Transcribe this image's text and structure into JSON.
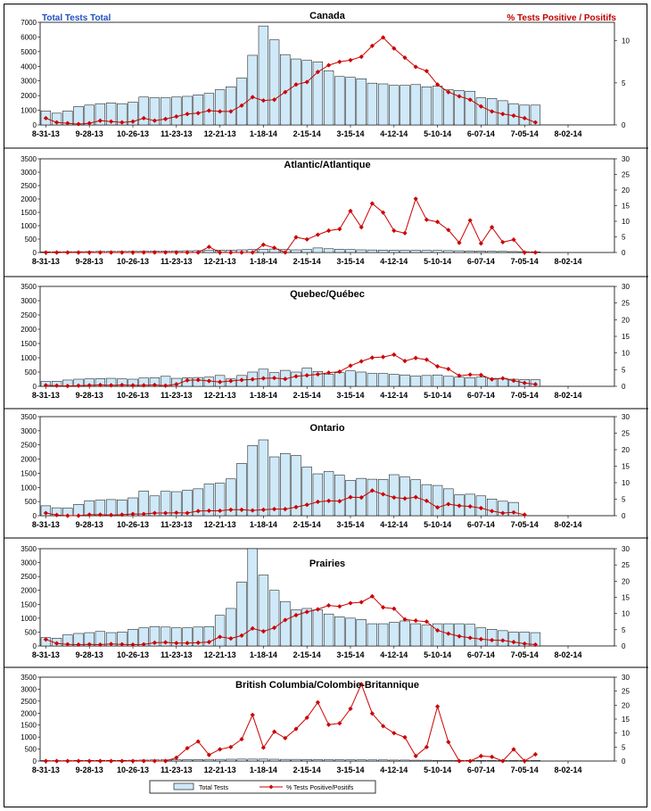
{
  "header": {
    "left_label": "Total Tests Total",
    "right_label": "% Tests Positive / Positifs",
    "left_color": "#1f4fbf",
    "right_color": "#c00000"
  },
  "colors": {
    "bar_fill": "#cfe9f8",
    "bar_stroke": "#000000",
    "line": "#cc0000"
  },
  "legend": {
    "bars": "Total Tests",
    "line": "% Tests Positive/Positifs"
  },
  "chart_data": [
    {
      "type": "bar",
      "title": "Canada",
      "x_tick_labels": [
        "8-31-13",
        "9-28-13",
        "10-26-13",
        "11-23-13",
        "12-21-13",
        "1-18-14",
        "2-15-14",
        "3-15-14",
        "4-12-14",
        "5-10-14",
        "6-07-14",
        "7-05-14",
        "8-02-14"
      ],
      "y_ticks": [
        0,
        1000,
        2000,
        3000,
        4000,
        5000,
        6000,
        7000
      ],
      "y2_ticks": [
        0,
        5,
        10
      ],
      "ylim": [
        0,
        7000
      ],
      "y2lim": [
        0,
        12.2
      ],
      "series": [
        {
          "name": "Total Tests",
          "values": [
            950,
            800,
            950,
            1250,
            1350,
            1450,
            1500,
            1450,
            1550,
            1900,
            1850,
            1850,
            1900,
            1950,
            2050,
            2150,
            2400,
            2600,
            3200,
            4750,
            6750,
            5800,
            4800,
            4500,
            4400,
            4300,
            3700,
            3300,
            3250,
            3150,
            2850,
            2800,
            2700,
            2700,
            2750,
            2600,
            2650,
            2400,
            2350,
            2300,
            1850,
            1800,
            1650,
            1450,
            1350,
            1350,
            0,
            0,
            0,
            0,
            0,
            0,
            0
          ]
        },
        {
          "name": "% Tests Positive / Positifs",
          "values": [
            0.8,
            0.3,
            0.2,
            0.1,
            0.2,
            0.5,
            0.4,
            0.3,
            0.4,
            0.8,
            0.5,
            0.7,
            1.0,
            1.3,
            1.4,
            1.7,
            1.6,
            1.6,
            2.3,
            3.3,
            2.9,
            3.0,
            3.9,
            4.8,
            5.1,
            6.3,
            7.1,
            7.5,
            7.7,
            8.1,
            9.4,
            10.4,
            9.1,
            8.0,
            6.9,
            6.4,
            4.8,
            3.9,
            3.4,
            3.0,
            2.2,
            1.6,
            1.3,
            1.1,
            0.8,
            0.3,
            null,
            null,
            null,
            null,
            null,
            null,
            null
          ]
        }
      ]
    },
    {
      "type": "bar",
      "title": "Atlantic/Atlantique",
      "x_tick_labels": [
        "8-31-13",
        "9-28-13",
        "10-26-13",
        "11-23-13",
        "12-21-13",
        "1-18-14",
        "2-15-14",
        "3-15-14",
        "4-12-14",
        "5-10-14",
        "6-07-14",
        "7-05-14",
        "8-02-14"
      ],
      "y_ticks": [
        0,
        500,
        1000,
        1500,
        2000,
        2500,
        3000,
        3500
      ],
      "y2_ticks": [
        0,
        5,
        10,
        15,
        20,
        25,
        30
      ],
      "ylim": [
        0,
        3500
      ],
      "y2lim": [
        0,
        30
      ],
      "series": [
        {
          "name": "Total Tests",
          "values": [
            25,
            25,
            30,
            30,
            35,
            40,
            40,
            40,
            45,
            50,
            55,
            55,
            60,
            65,
            70,
            80,
            90,
            90,
            100,
            110,
            120,
            130,
            110,
            100,
            110,
            170,
            140,
            120,
            110,
            100,
            95,
            90,
            85,
            80,
            80,
            75,
            75,
            70,
            65,
            60,
            55,
            45,
            40,
            35,
            30,
            25,
            0,
            0,
            0,
            0,
            0,
            0,
            0
          ]
        },
        {
          "name": "% Tests Positive / Positifs",
          "values": [
            0,
            0,
            0,
            0,
            0,
            0,
            0,
            0,
            0,
            0,
            0,
            0,
            0,
            0,
            0,
            1.8,
            0,
            0,
            0,
            0,
            2.5,
            1.5,
            0,
            4.9,
            4.2,
            5.7,
            7.0,
            7.5,
            13.3,
            8.1,
            15.7,
            12.8,
            7.0,
            6.2,
            17.2,
            10.5,
            9.8,
            7.2,
            3.1,
            10.3,
            2.9,
            8.1,
            3.3,
            4.1,
            0,
            0,
            null,
            null,
            null,
            null,
            null,
            null,
            null
          ]
        }
      ]
    },
    {
      "type": "bar",
      "title": "Quebec/Québec",
      "x_tick_labels": [
        "8-31-13",
        "9-28-13",
        "10-26-13",
        "11-23-13",
        "12-21-13",
        "1-18-14",
        "2-15-14",
        "3-15-14",
        "4-12-14",
        "5-10-14",
        "6-07-14",
        "7-05-14",
        "8-02-14"
      ],
      "y_ticks": [
        0,
        500,
        1000,
        1500,
        2000,
        2500,
        3000,
        3500
      ],
      "y2_ticks": [
        0,
        5,
        10,
        15,
        20,
        25,
        30
      ],
      "ylim": [
        0,
        3500
      ],
      "y2lim": [
        0,
        30
      ],
      "series": [
        {
          "name": "Total Tests",
          "values": [
            170,
            180,
            220,
            250,
            260,
            270,
            280,
            260,
            250,
            290,
            300,
            350,
            280,
            300,
            310,
            320,
            380,
            260,
            380,
            500,
            600,
            480,
            560,
            500,
            640,
            520,
            430,
            480,
            540,
            500,
            450,
            450,
            420,
            400,
            360,
            380,
            400,
            350,
            320,
            300,
            320,
            280,
            280,
            250,
            240,
            230,
            0,
            0,
            0,
            0,
            0,
            0,
            0
          ]
        },
        {
          "name": "% Tests Positive / Positifs",
          "values": [
            0.3,
            0.2,
            0.1,
            0.2,
            0.3,
            0.4,
            0.3,
            0.4,
            0.3,
            0.3,
            0.4,
            0.2,
            0.6,
            1.8,
            1.9,
            1.6,
            1.3,
            1.6,
            1.9,
            2.1,
            2.4,
            2.5,
            2.2,
            3.0,
            3.3,
            3.6,
            4.1,
            4.4,
            6.2,
            7.5,
            8.6,
            8.8,
            9.5,
            7.6,
            8.5,
            8.0,
            6.0,
            5.2,
            3.2,
            3.5,
            3.4,
            2.1,
            2.4,
            1.7,
            1.0,
            0.6,
            null,
            null,
            null,
            null,
            null,
            null,
            null
          ]
        }
      ]
    },
    {
      "type": "bar",
      "title": "Ontario",
      "x_tick_labels": [
        "8-31-13",
        "9-28-13",
        "10-26-13",
        "11-23-13",
        "12-21-13",
        "1-18-14",
        "2-15-14",
        "3-15-14",
        "4-12-14",
        "5-10-14",
        "6-07-14",
        "7-05-14",
        "8-02-14"
      ],
      "y_ticks": [
        0,
        500,
        1000,
        1500,
        2000,
        2500,
        3000,
        3500
      ],
      "y2_ticks": [
        0,
        5,
        10,
        15,
        20,
        25,
        30
      ],
      "ylim": [
        0,
        3500
      ],
      "y2lim": [
        0,
        30
      ],
      "series": [
        {
          "name": "Total Tests",
          "values": [
            350,
            280,
            270,
            400,
            530,
            550,
            570,
            560,
            630,
            870,
            700,
            860,
            850,
            900,
            950,
            1120,
            1150,
            1300,
            1850,
            2480,
            2680,
            2080,
            2200,
            2130,
            1720,
            1480,
            1560,
            1440,
            1250,
            1320,
            1290,
            1280,
            1450,
            1370,
            1270,
            1100,
            1070,
            950,
            740,
            760,
            700,
            590,
            510,
            470,
            0,
            0,
            0,
            0,
            0,
            0,
            0,
            0,
            0
          ]
        },
        {
          "name": "% Tests Positive / Positifs",
          "values": [
            0.8,
            0.2,
            0,
            0,
            0.3,
            0.3,
            0.2,
            0.3,
            0.5,
            0.5,
            0.8,
            0.8,
            0.9,
            0.8,
            1.4,
            1.5,
            1.5,
            1.8,
            1.8,
            1.6,
            1.8,
            2.0,
            2.0,
            2.6,
            3.3,
            4.2,
            4.5,
            4.4,
            5.6,
            5.5,
            7.6,
            6.5,
            5.5,
            5.2,
            5.6,
            4.5,
            2.5,
            3.5,
            3.0,
            2.8,
            2.3,
            1.4,
            0.8,
            1.0,
            0.3,
            null,
            null,
            null,
            null,
            null,
            null,
            null,
            null
          ]
        }
      ]
    },
    {
      "type": "bar",
      "title": "Prairies",
      "x_tick_labels": [
        "8-31-13",
        "9-28-13",
        "10-26-13",
        "11-23-13",
        "12-21-13",
        "1-18-14",
        "2-15-14",
        "3-15-14",
        "4-12-14",
        "5-10-14",
        "6-07-14",
        "7-05-14",
        "8-02-14"
      ],
      "y_ticks": [
        0,
        500,
        1000,
        1500,
        2000,
        2500,
        3000,
        3500
      ],
      "y2_ticks": [
        0,
        5,
        10,
        15,
        20,
        25,
        30
      ],
      "ylim": [
        0,
        3500
      ],
      "y2lim": [
        0,
        30
      ],
      "series": [
        {
          "name": "Total Tests",
          "values": [
            300,
            280,
            400,
            450,
            480,
            520,
            480,
            500,
            600,
            650,
            700,
            680,
            650,
            650,
            680,
            700,
            1100,
            1350,
            2300,
            3500,
            2550,
            2000,
            1600,
            1300,
            1350,
            1300,
            1150,
            1050,
            1000,
            950,
            800,
            800,
            850,
            900,
            800,
            750,
            800,
            800,
            800,
            780,
            650,
            600,
            550,
            500,
            500,
            480,
            0,
            0,
            0,
            0,
            0,
            0,
            0
          ]
        },
        {
          "name": "% Tests Positive / Positifs",
          "values": [
            2.0,
            0.8,
            0.5,
            0.4,
            0.5,
            0.4,
            0.6,
            0.5,
            0.4,
            0.5,
            1.0,
            1.1,
            0.9,
            0.9,
            1.0,
            1.2,
            2.8,
            2.3,
            3.2,
            5.4,
            4.5,
            5.6,
            8.0,
            9.5,
            10.5,
            11.3,
            12.5,
            12.2,
            13.2,
            13.5,
            15.3,
            11.9,
            11.5,
            8.2,
            7.8,
            7.5,
            4.8,
            3.8,
            3.0,
            2.5,
            2.1,
            1.8,
            1.7,
            1.2,
            0.7,
            0.4,
            null,
            null,
            null,
            null,
            null,
            null,
            null
          ]
        }
      ]
    },
    {
      "type": "bar",
      "title": "British Columbia/Colombie-Britannique",
      "x_tick_labels": [
        "8-31-13",
        "9-28-13",
        "10-26-13",
        "11-23-13",
        "12-21-13",
        "1-18-14",
        "2-15-14",
        "3-15-14",
        "4-12-14",
        "5-10-14",
        "6-07-14",
        "7-05-14",
        "8-02-14"
      ],
      "y_ticks": [
        0,
        500,
        1000,
        1500,
        2000,
        2500,
        3000,
        3500
      ],
      "y2_ticks": [
        0,
        5,
        10,
        15,
        20,
        25,
        30
      ],
      "ylim": [
        0,
        3500
      ],
      "y2lim": [
        0,
        30
      ],
      "series": [
        {
          "name": "Total Tests",
          "values": [
            20,
            20,
            20,
            25,
            25,
            30,
            30,
            30,
            35,
            40,
            45,
            50,
            55,
            60,
            65,
            70,
            70,
            75,
            80,
            80,
            80,
            75,
            70,
            70,
            65,
            60,
            55,
            55,
            50,
            50,
            45,
            45,
            40,
            40,
            35,
            35,
            30,
            30,
            25,
            25,
            25,
            20,
            20,
            20,
            20,
            20,
            0,
            0,
            0,
            0,
            0,
            0,
            0
          ]
        },
        {
          "name": "% Tests Positive / Positifs",
          "values": [
            0,
            0,
            0,
            0,
            0,
            0,
            0,
            0,
            0,
            0,
            0,
            0,
            1.2,
            4.6,
            7.0,
            2.2,
            4.2,
            5.0,
            7.8,
            16.5,
            4.8,
            10.5,
            8.2,
            11.5,
            15.5,
            21.0,
            13.0,
            13.5,
            18.7,
            27.5,
            17.0,
            12.5,
            10.0,
            8.5,
            1.8,
            5.0,
            19.5,
            6.8,
            0,
            0,
            1.8,
            1.5,
            0,
            4.2,
            0,
            2.4,
            null,
            null,
            null,
            null,
            null,
            null,
            null
          ]
        }
      ]
    }
  ]
}
